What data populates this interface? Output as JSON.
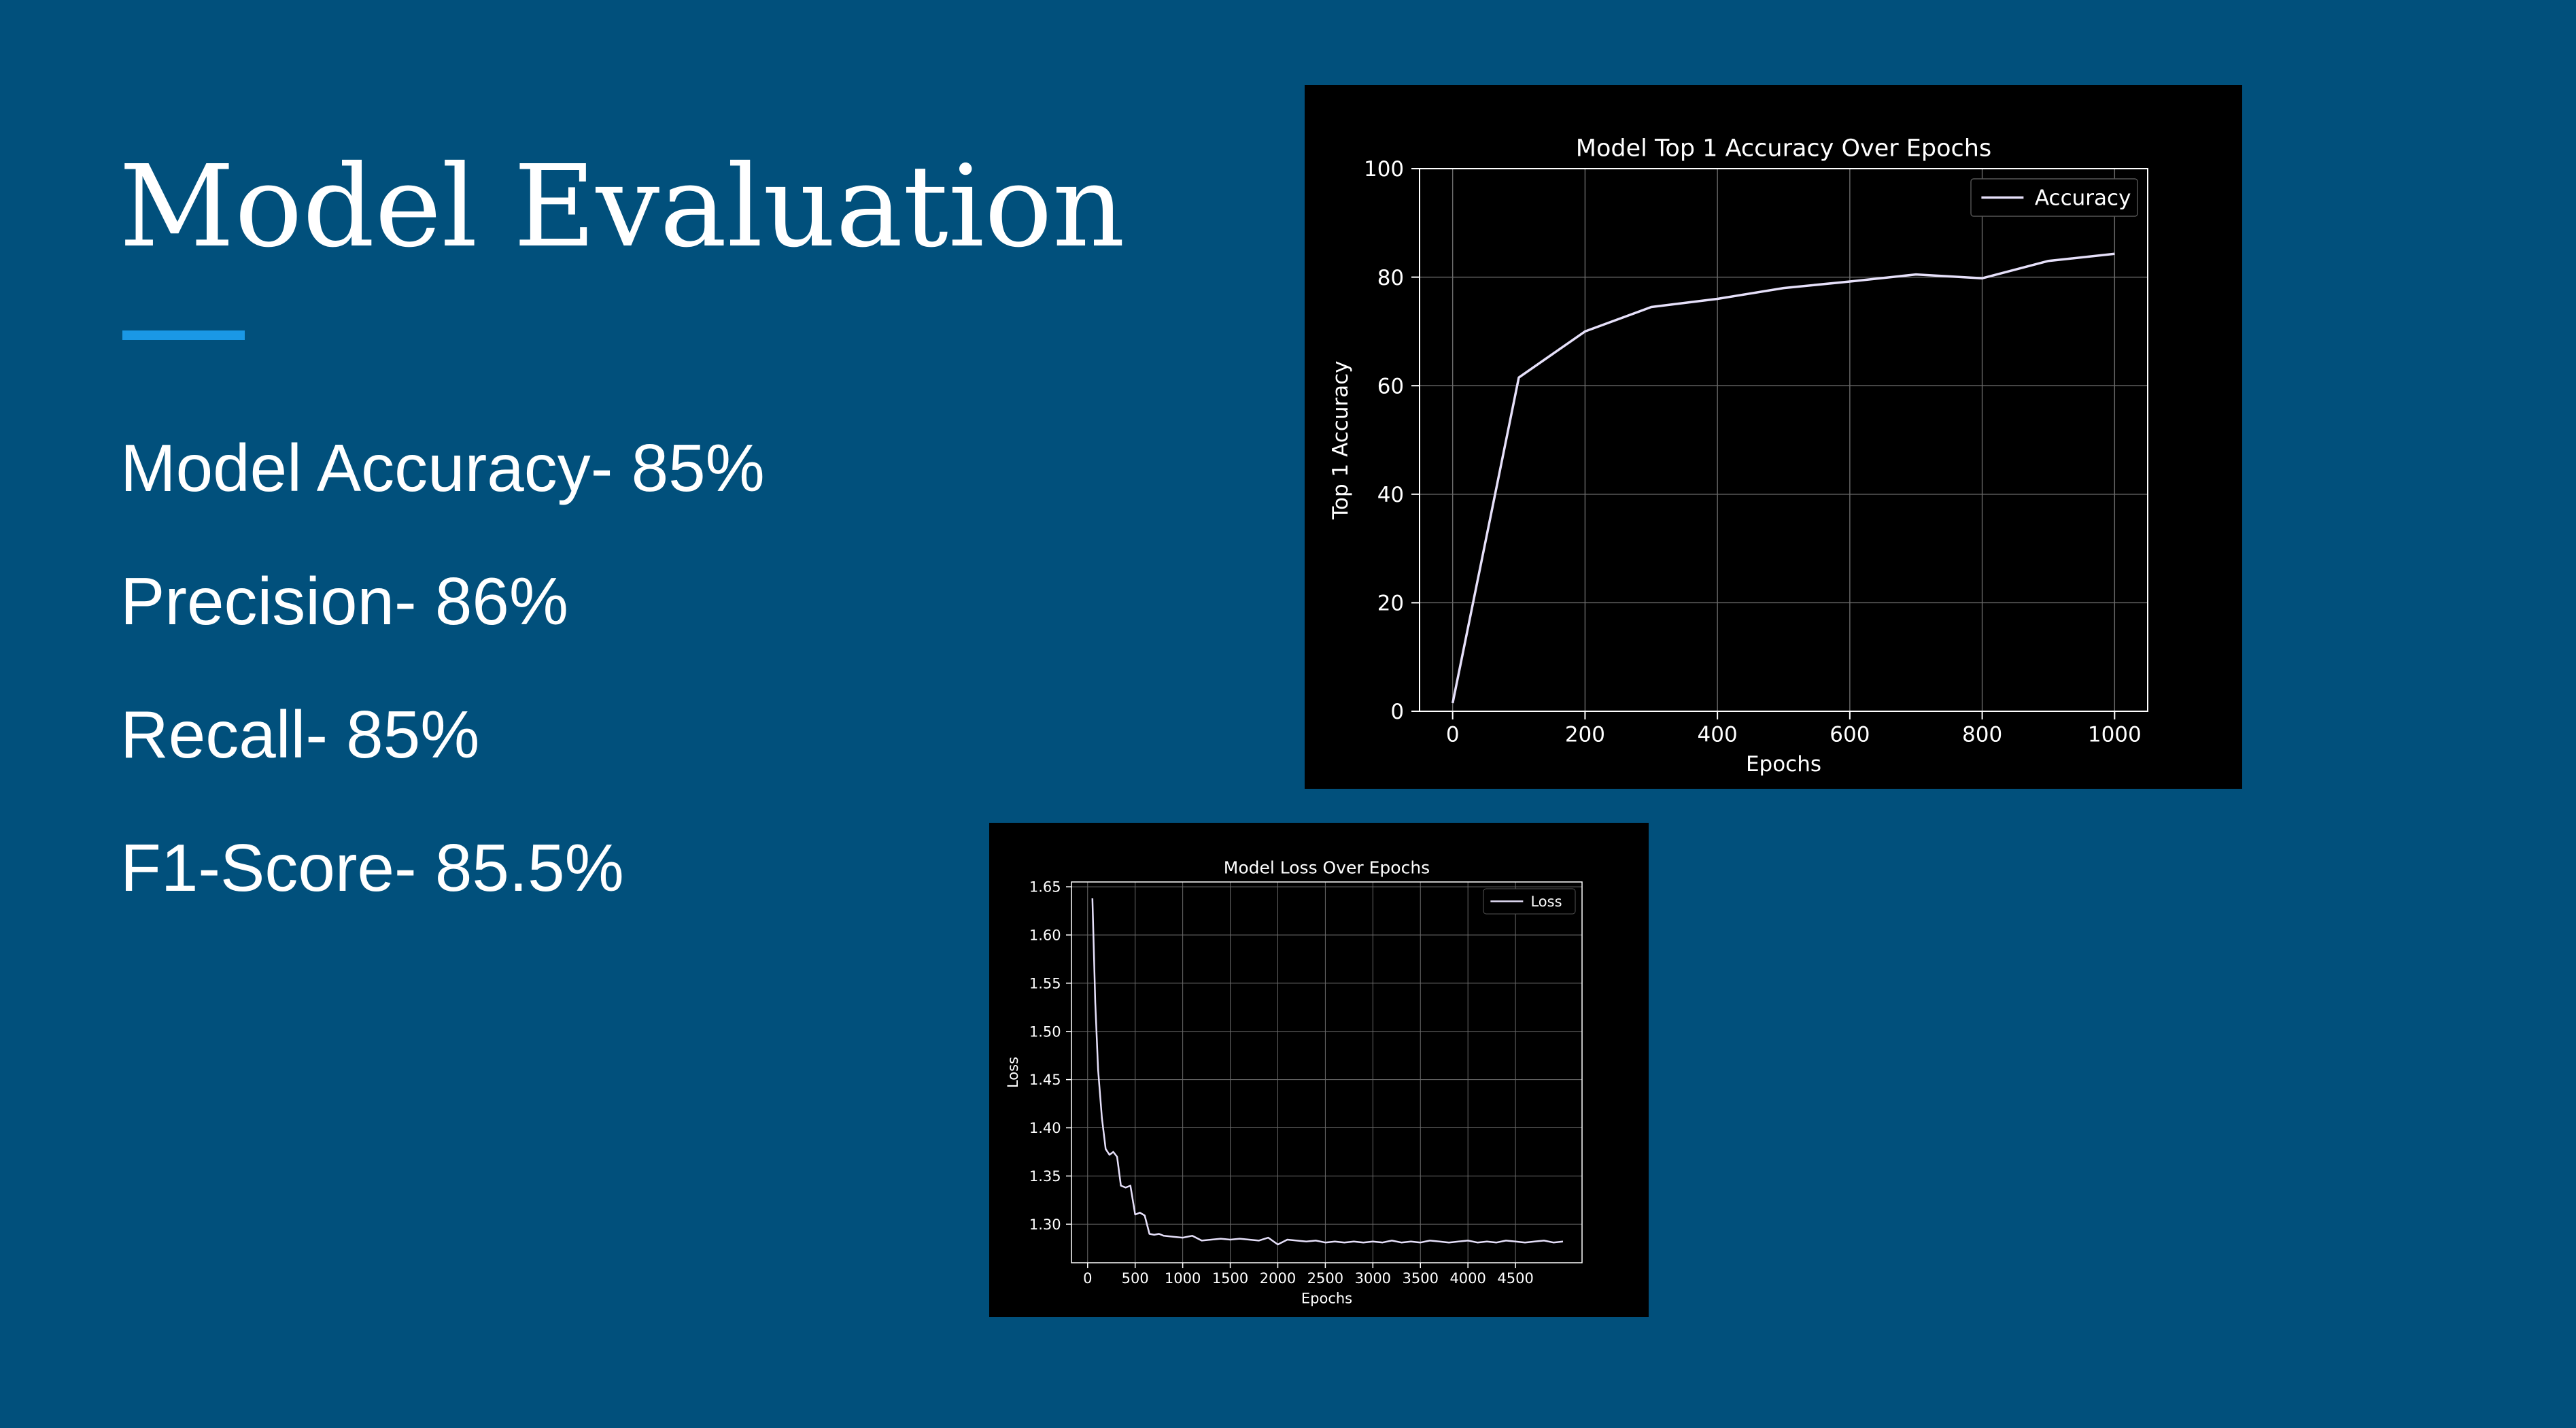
{
  "slide": {
    "title": "Model Evaluation",
    "accent_color": "#1a98e6",
    "background_color": "#01507c",
    "metrics": [
      "Model Accuracy- 85%",
      "Precision- 86%",
      "Recall- 85%",
      "F1-Score- 85.5%"
    ]
  },
  "chart_data": [
    {
      "type": "line",
      "title": "Model Top 1 Accuracy Over Epochs",
      "xlabel": "Epochs",
      "ylabel": "Top 1 Accuracy",
      "xlim": [
        -50,
        1050
      ],
      "ylim": [
        0,
        100
      ],
      "xticks": [
        0,
        200,
        400,
        600,
        800,
        1000
      ],
      "yticks": [
        0,
        20,
        40,
        60,
        80,
        100
      ],
      "grid": true,
      "legend_position": "top-right",
      "line_color": "#e6e0fa",
      "series": [
        {
          "name": "Accuracy",
          "x": [
            0,
            100,
            200,
            300,
            400,
            500,
            600,
            700,
            800,
            900,
            1000
          ],
          "y": [
            1.5,
            61.5,
            70.0,
            74.5,
            76.0,
            78.0,
            79.2,
            80.5,
            79.8,
            83.0,
            84.3
          ]
        }
      ]
    },
    {
      "type": "line",
      "title": "Model Loss Over Epochs",
      "xlabel": "Epochs",
      "ylabel": "Loss",
      "xlim": [
        -170,
        5200
      ],
      "ylim": [
        1.26,
        1.655
      ],
      "xticks": [
        0,
        500,
        1000,
        1500,
        2000,
        2500,
        3000,
        3500,
        4000,
        4500
      ],
      "yticks": [
        1.3,
        1.35,
        1.4,
        1.45,
        1.5,
        1.55,
        1.6,
        1.65
      ],
      "ytick_labels": [
        "1.30",
        "1.35",
        "1.40",
        "1.45",
        "1.50",
        "1.55",
        "1.60",
        "1.65"
      ],
      "grid": true,
      "legend_position": "top-right",
      "line_color": "#e6e0fa",
      "series": [
        {
          "name": "Loss",
          "x": [
            50,
            80,
            110,
            150,
            190,
            230,
            270,
            310,
            350,
            400,
            450,
            500,
            550,
            600,
            650,
            700,
            750,
            800,
            900,
            1000,
            1100,
            1200,
            1300,
            1400,
            1500,
            1600,
            1700,
            1800,
            1900,
            2000,
            2100,
            2200,
            2300,
            2400,
            2500,
            2600,
            2700,
            2800,
            2900,
            3000,
            3100,
            3200,
            3300,
            3400,
            3500,
            3600,
            3700,
            3800,
            3900,
            4000,
            4100,
            4200,
            4300,
            4400,
            4500,
            4600,
            4700,
            4800,
            4900,
            5000
          ],
          "y": [
            1.638,
            1.53,
            1.46,
            1.41,
            1.378,
            1.372,
            1.375,
            1.37,
            1.34,
            1.338,
            1.34,
            1.31,
            1.312,
            1.309,
            1.29,
            1.289,
            1.29,
            1.288,
            1.287,
            1.286,
            1.288,
            1.283,
            1.284,
            1.285,
            1.284,
            1.285,
            1.284,
            1.283,
            1.286,
            1.279,
            1.284,
            1.283,
            1.282,
            1.283,
            1.281,
            1.282,
            1.281,
            1.282,
            1.281,
            1.282,
            1.281,
            1.283,
            1.281,
            1.282,
            1.281,
            1.283,
            1.282,
            1.281,
            1.282,
            1.283,
            1.281,
            1.282,
            1.281,
            1.283,
            1.282,
            1.281,
            1.282,
            1.283,
            1.281,
            1.282
          ]
        }
      ]
    }
  ]
}
